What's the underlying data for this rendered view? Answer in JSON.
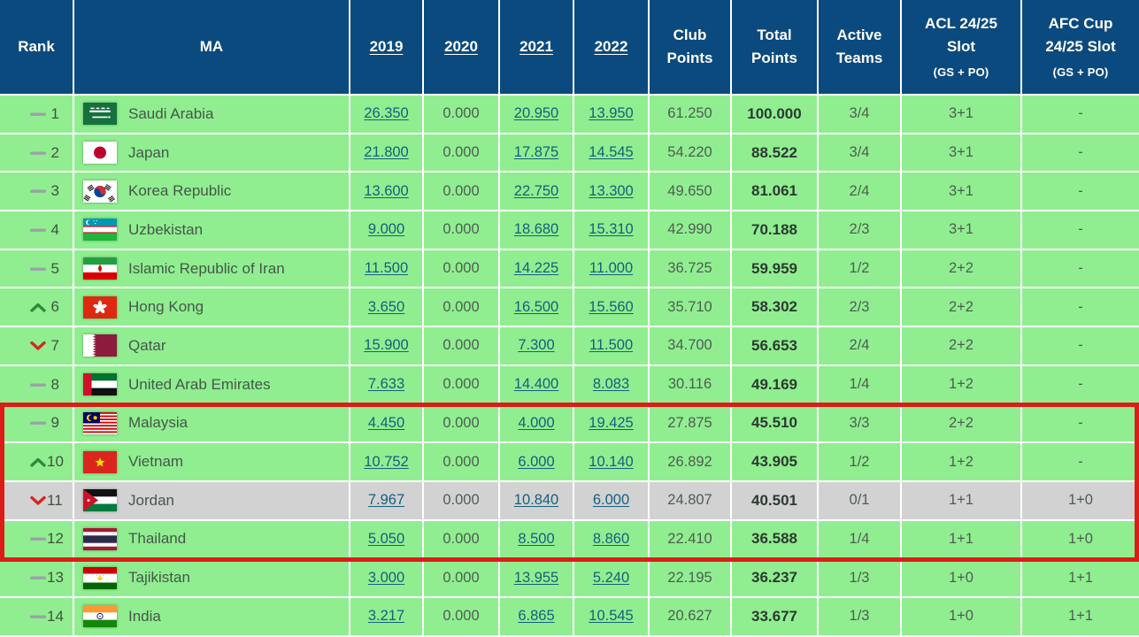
{
  "table": {
    "header": {
      "rank": "Rank",
      "ma": "MA",
      "y2019": "2019",
      "y2020": "2020",
      "y2021": "2021",
      "y2022": "2022",
      "club_points": "Club Points",
      "total_points": "Total Points",
      "active_teams": "Active Teams",
      "acl_slot": "ACL 24/25 Slot",
      "acl_slot_sub": "(GS + PO)",
      "afc_cup_slot": "AFC Cup 24/25 Slot",
      "afc_cup_slot_sub": "(GS + PO)"
    },
    "rows": [
      {
        "rank": "1",
        "change": "same",
        "country": "Saudi Arabia",
        "flag": "flag-saudi-arabia",
        "y2019": "26.350",
        "y2020": "0.000",
        "y2021": "20.950",
        "y2022": "13.950",
        "club_points": "61.250",
        "total_points": "100.000",
        "active_teams": "3/4",
        "acl_slot": "3+1",
        "afc_cup_slot": "-",
        "dimmed": false
      },
      {
        "rank": "2",
        "change": "same",
        "country": "Japan",
        "flag": "flag-japan",
        "y2019": "21.800",
        "y2020": "0.000",
        "y2021": "17.875",
        "y2022": "14.545",
        "club_points": "54.220",
        "total_points": "88.522",
        "active_teams": "3/4",
        "acl_slot": "3+1",
        "afc_cup_slot": "-",
        "dimmed": false
      },
      {
        "rank": "3",
        "change": "same",
        "country": "Korea Republic",
        "flag": "flag-korea-republic",
        "y2019": "13.600",
        "y2020": "0.000",
        "y2021": "22.750",
        "y2022": "13.300",
        "club_points": "49.650",
        "total_points": "81.061",
        "active_teams": "2/4",
        "acl_slot": "3+1",
        "afc_cup_slot": "-",
        "dimmed": false
      },
      {
        "rank": "4",
        "change": "same",
        "country": "Uzbekistan",
        "flag": "flag-uzbekistan",
        "y2019": "9.000",
        "y2020": "0.000",
        "y2021": "18.680",
        "y2022": "15.310",
        "club_points": "42.990",
        "total_points": "70.188",
        "active_teams": "2/3",
        "acl_slot": "3+1",
        "afc_cup_slot": "-",
        "dimmed": false
      },
      {
        "rank": "5",
        "change": "same",
        "country": "Islamic Republic of Iran",
        "flag": "flag-iran",
        "y2019": "11.500",
        "y2020": "0.000",
        "y2021": "14.225",
        "y2022": "11.000",
        "club_points": "36.725",
        "total_points": "59.959",
        "active_teams": "1/2",
        "acl_slot": "2+2",
        "afc_cup_slot": "-",
        "dimmed": false
      },
      {
        "rank": "6",
        "change": "up",
        "country": "Hong Kong",
        "flag": "flag-hong-kong",
        "y2019": "3.650",
        "y2020": "0.000",
        "y2021": "16.500",
        "y2022": "15.560",
        "club_points": "35.710",
        "total_points": "58.302",
        "active_teams": "2/3",
        "acl_slot": "2+2",
        "afc_cup_slot": "-",
        "dimmed": false
      },
      {
        "rank": "7",
        "change": "down",
        "country": "Qatar",
        "flag": "flag-qatar",
        "y2019": "15.900",
        "y2020": "0.000",
        "y2021": "7.300",
        "y2022": "11.500",
        "club_points": "34.700",
        "total_points": "56.653",
        "active_teams": "2/4",
        "acl_slot": "2+2",
        "afc_cup_slot": "-",
        "dimmed": false
      },
      {
        "rank": "8",
        "change": "same",
        "country": "United Arab Emirates",
        "flag": "flag-uae",
        "y2019": "7.633",
        "y2020": "0.000",
        "y2021": "14.400",
        "y2022": "8.083",
        "club_points": "30.116",
        "total_points": "49.169",
        "active_teams": "1/4",
        "acl_slot": "1+2",
        "afc_cup_slot": "-",
        "dimmed": false
      },
      {
        "rank": "9",
        "change": "same",
        "country": "Malaysia",
        "flag": "flag-malaysia",
        "y2019": "4.450",
        "y2020": "0.000",
        "y2021": "4.000",
        "y2022": "19.425",
        "club_points": "27.875",
        "total_points": "45.510",
        "active_teams": "3/3",
        "acl_slot": "2+2",
        "afc_cup_slot": "-",
        "dimmed": false
      },
      {
        "rank": "10",
        "change": "up",
        "country": "Vietnam",
        "flag": "flag-vietnam",
        "y2019": "10.752",
        "y2020": "0.000",
        "y2021": "6.000",
        "y2022": "10.140",
        "club_points": "26.892",
        "total_points": "43.905",
        "active_teams": "1/2",
        "acl_slot": "1+2",
        "afc_cup_slot": "-",
        "dimmed": false
      },
      {
        "rank": "11",
        "change": "down",
        "country": "Jordan",
        "flag": "flag-jordan",
        "y2019": "7.967",
        "y2020": "0.000",
        "y2021": "10.840",
        "y2022": "6.000",
        "club_points": "24.807",
        "total_points": "40.501",
        "active_teams": "0/1",
        "acl_slot": "1+1",
        "afc_cup_slot": "1+0",
        "dimmed": true
      },
      {
        "rank": "12",
        "change": "same",
        "country": "Thailand",
        "flag": "flag-thailand",
        "y2019": "5.050",
        "y2020": "0.000",
        "y2021": "8.500",
        "y2022": "8.860",
        "club_points": "22.410",
        "total_points": "36.588",
        "active_teams": "1/4",
        "acl_slot": "1+1",
        "afc_cup_slot": "1+0",
        "dimmed": false
      },
      {
        "rank": "13",
        "change": "same",
        "country": "Tajikistan",
        "flag": "flag-tajikistan",
        "y2019": "3.000",
        "y2020": "0.000",
        "y2021": "13.955",
        "y2022": "5.240",
        "club_points": "22.195",
        "total_points": "36.237",
        "active_teams": "1/3",
        "acl_slot": "1+0",
        "afc_cup_slot": "1+1",
        "dimmed": false
      },
      {
        "rank": "14",
        "change": "same",
        "country": "India",
        "flag": "flag-india",
        "y2019": "3.217",
        "y2020": "0.000",
        "y2021": "6.865",
        "y2022": "10.545",
        "club_points": "20.627",
        "total_points": "33.677",
        "active_teams": "1/3",
        "acl_slot": "1+0",
        "afc_cup_slot": "1+1",
        "dimmed": false
      }
    ],
    "highlight_box": {
      "from_rank": 9,
      "to_rank": 12,
      "color": "#dc1d17"
    }
  },
  "colors": {
    "header_bg": "#0b4a7e",
    "row_green": "#90ee90",
    "row_gray": "#d2d2d2",
    "link": "#155f7d",
    "up_arrow": "#2e8b3a",
    "down_arrow": "#d42a1e",
    "same_dash": "#9aa2a5",
    "highlight_border": "#dc1d17"
  }
}
